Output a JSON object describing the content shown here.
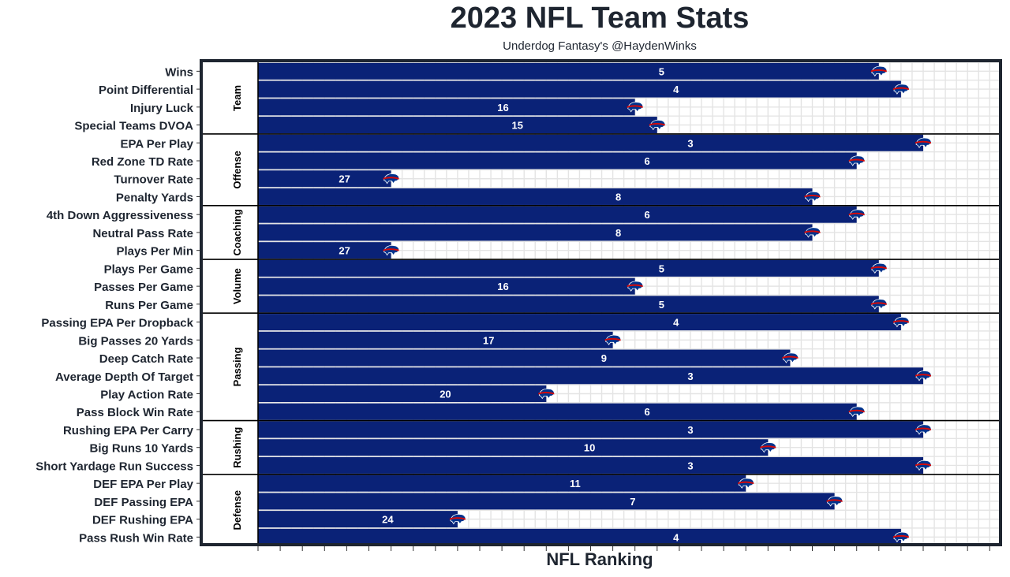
{
  "title": "2023 NFL Team Stats",
  "subtitle": "Underdog Fantasy's @HaydenWinks",
  "colors": {
    "bar": "#0a2277",
    "grid": "#e4e4e4",
    "frame": "#1e2530",
    "logo_red": "#d50a0a",
    "logo_blue": "#00338d"
  },
  "chart_data": {
    "type": "bar",
    "orientation": "horizontal",
    "title": "2023 NFL Team Stats",
    "subtitle": "Underdog Fantasy's @HaydenWinks",
    "xlabel": "NFL Ranking",
    "xlim": [
      32,
      1
    ],
    "grid": true,
    "groups": [
      {
        "name": "Team",
        "items": [
          {
            "label": "Wins",
            "rank": 5
          },
          {
            "label": "Point Differential",
            "rank": 4
          },
          {
            "label": "Injury Luck",
            "rank": 16
          },
          {
            "label": "Special Teams DVOA",
            "rank": 15
          }
        ]
      },
      {
        "name": "Offense",
        "items": [
          {
            "label": "EPA Per Play",
            "rank": 3
          },
          {
            "label": "Red Zone TD Rate",
            "rank": 6
          },
          {
            "label": "Turnover Rate",
            "rank": 27
          },
          {
            "label": "Penalty Yards",
            "rank": 8
          }
        ]
      },
      {
        "name": "Coaching",
        "items": [
          {
            "label": "4th Down Aggressiveness",
            "rank": 6
          },
          {
            "label": "Neutral Pass Rate",
            "rank": 8
          },
          {
            "label": "Plays Per Min",
            "rank": 27
          }
        ]
      },
      {
        "name": "Volume",
        "items": [
          {
            "label": "Plays Per Game",
            "rank": 5
          },
          {
            "label": "Passes Per Game",
            "rank": 16
          },
          {
            "label": "Runs Per Game",
            "rank": 5
          }
        ]
      },
      {
        "name": "Passing",
        "items": [
          {
            "label": "Passing EPA Per Dropback",
            "rank": 4
          },
          {
            "label": "Big Passes 20 Yards",
            "rank": 17
          },
          {
            "label": "Deep Catch Rate",
            "rank": 9
          },
          {
            "label": "Average Depth Of Target",
            "rank": 3
          },
          {
            "label": "Play Action Rate",
            "rank": 20
          },
          {
            "label": "Pass Block Win Rate",
            "rank": 6
          }
        ]
      },
      {
        "name": "Rushing",
        "items": [
          {
            "label": "Rushing EPA Per Carry",
            "rank": 3
          },
          {
            "label": "Big Runs 10 Yards",
            "rank": 10
          },
          {
            "label": "Short Yardage Run Success",
            "rank": 3
          }
        ]
      },
      {
        "name": "Defense",
        "items": [
          {
            "label": "DEF EPA Per Play",
            "rank": 11
          },
          {
            "label": "DEF Passing EPA",
            "rank": 7
          },
          {
            "label": "DEF Rushing EPA",
            "rank": 24
          },
          {
            "label": "Pass Rush Win Rate",
            "rank": 4
          }
        ]
      }
    ]
  }
}
